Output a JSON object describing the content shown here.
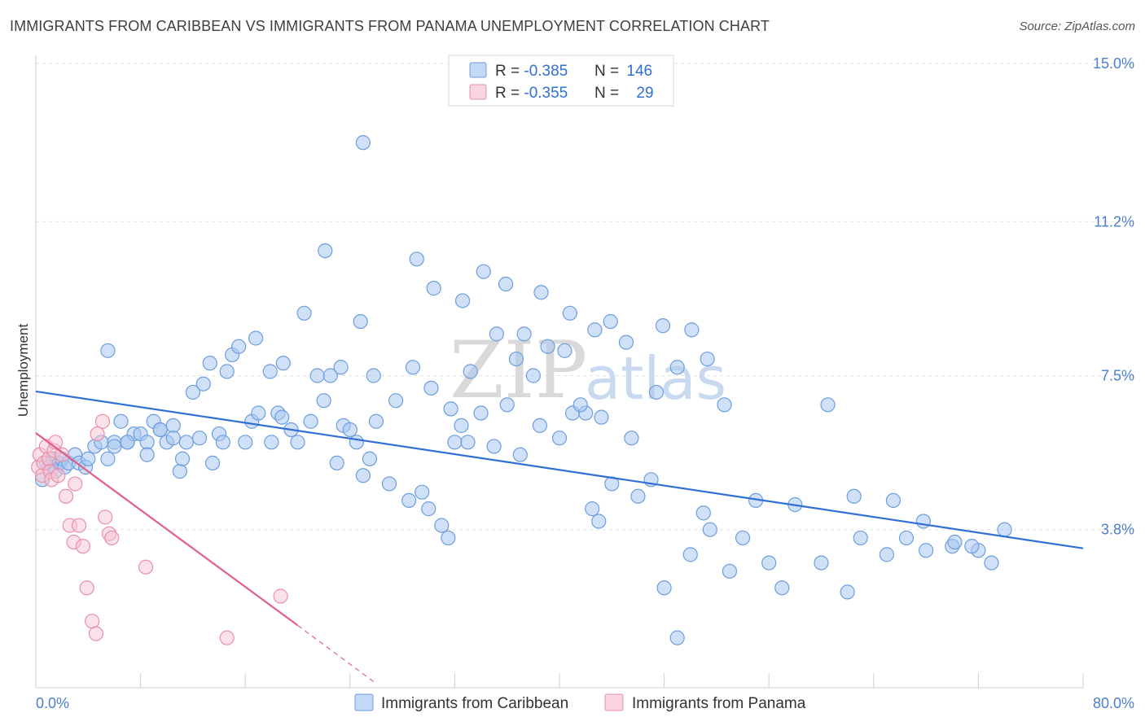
{
  "header": {
    "title": "IMMIGRANTS FROM CARIBBEAN VS IMMIGRANTS FROM PANAMA UNEMPLOYMENT CORRELATION CHART",
    "source": "Source: ZipAtlas.com"
  },
  "watermark": {
    "zip": "ZIP",
    "atlas": "atlas"
  },
  "legend": {
    "rows": [
      {
        "r_label": "R = ",
        "r_value": "-0.385",
        "n_label": "N = ",
        "n_value": "146",
        "color": "#8fb4ea"
      },
      {
        "r_label": "R = ",
        "r_value": "-0.355",
        "n_label": "N = ",
        "n_value": "29",
        "color": "#f2a7bd"
      }
    ]
  },
  "colors": {
    "caribbean_fill": "#aac8f0",
    "caribbean_stroke": "#6d9de0",
    "caribbean_line": "#2f6fd6",
    "panama_fill": "#f7c3d2",
    "panama_stroke": "#ea8fab",
    "panama_line": "#e0608a",
    "grid": "#e3e3e3",
    "tick_text": "#4a7fd0"
  },
  "chart_data": {
    "type": "scatter",
    "title": "IMMIGRANTS FROM CARIBBEAN VS IMMIGRANTS FROM PANAMA UNEMPLOYMENT CORRELATION CHART",
    "xlabel": "",
    "ylabel": "Unemployment",
    "xlim": [
      0,
      80
    ],
    "ylim": [
      0,
      15.0
    ],
    "x_tick_labels": [
      "0.0%",
      "80.0%"
    ],
    "y_ticks": [
      3.8,
      7.5,
      11.2,
      15.0
    ],
    "y_tick_labels": [
      "3.8%",
      "7.5%",
      "11.2%",
      "15.0%"
    ],
    "grid": true,
    "legend_position": "top-center",
    "series": [
      {
        "name": "Immigrants from Caribbean",
        "R": -0.385,
        "N": 146,
        "trend": {
          "x": [
            0,
            80
          ],
          "y": [
            7.12,
            3.35
          ]
        },
        "points": [
          [
            0.5,
            5.0
          ],
          [
            0.8,
            5.4
          ],
          [
            1.0,
            5.3
          ],
          [
            1.3,
            5.5
          ],
          [
            1.5,
            5.2
          ],
          [
            1.8,
            5.4
          ],
          [
            2.0,
            5.5
          ],
          [
            2.2,
            5.3
          ],
          [
            2.5,
            5.4
          ],
          [
            3.0,
            5.6
          ],
          [
            3.3,
            5.4
          ],
          [
            3.8,
            5.3
          ],
          [
            4.0,
            5.5
          ],
          [
            4.5,
            5.8
          ],
          [
            5.0,
            5.9
          ],
          [
            5.5,
            5.5
          ],
          [
            6.0,
            5.9
          ],
          [
            6.5,
            6.4
          ],
          [
            7.0,
            5.9
          ],
          [
            7.5,
            6.1
          ],
          [
            8.0,
            6.1
          ],
          [
            8.5,
            5.9
          ],
          [
            9.0,
            6.4
          ],
          [
            9.5,
            6.2
          ],
          [
            10.0,
            5.9
          ],
          [
            10.5,
            6.3
          ],
          [
            11.0,
            5.2
          ],
          [
            11.5,
            5.9
          ],
          [
            12.0,
            7.1
          ],
          [
            12.5,
            6.0
          ],
          [
            13.5,
            5.4
          ],
          [
            14.0,
            6.1
          ],
          [
            14.3,
            5.9
          ],
          [
            15.0,
            8.0
          ],
          [
            16.0,
            5.9
          ],
          [
            16.5,
            6.4
          ],
          [
            17.0,
            6.6
          ],
          [
            18.0,
            5.9
          ],
          [
            18.5,
            6.6
          ],
          [
            18.8,
            6.5
          ],
          [
            19.5,
            6.2
          ],
          [
            20.0,
            5.9
          ],
          [
            21.0,
            6.4
          ],
          [
            22.0,
            6.9
          ],
          [
            22.5,
            7.5
          ],
          [
            23.0,
            5.4
          ],
          [
            23.5,
            6.3
          ],
          [
            24.0,
            6.2
          ],
          [
            24.5,
            5.9
          ],
          [
            25.0,
            5.1
          ],
          [
            25.5,
            5.5
          ],
          [
            26.0,
            6.4
          ],
          [
            27.0,
            4.9
          ],
          [
            28.5,
            4.5
          ],
          [
            29.5,
            4.7
          ],
          [
            30.0,
            4.3
          ],
          [
            31.0,
            3.9
          ],
          [
            31.5,
            3.6
          ],
          [
            32.0,
            5.9
          ],
          [
            32.5,
            6.3
          ],
          [
            33.0,
            5.9
          ],
          [
            34.0,
            6.6
          ],
          [
            35.0,
            5.8
          ],
          [
            36.0,
            6.8
          ],
          [
            37.0,
            5.6
          ],
          [
            38.5,
            6.3
          ],
          [
            40.0,
            6.0
          ],
          [
            41.0,
            6.6
          ],
          [
            42.0,
            6.6
          ],
          [
            42.5,
            4.3
          ],
          [
            43.0,
            4.0
          ],
          [
            44.0,
            4.9
          ],
          [
            46.0,
            4.6
          ],
          [
            47.0,
            5.0
          ],
          [
            48.0,
            2.4
          ],
          [
            49.0,
            1.2
          ],
          [
            50.0,
            3.2
          ],
          [
            51.0,
            4.2
          ],
          [
            51.5,
            3.8
          ],
          [
            53.0,
            2.8
          ],
          [
            54.0,
            3.6
          ],
          [
            55.0,
            4.5
          ],
          [
            56.0,
            3.0
          ],
          [
            57.0,
            2.4
          ],
          [
            58.0,
            4.4
          ],
          [
            60.0,
            3.0
          ],
          [
            62.0,
            2.3
          ],
          [
            63.0,
            3.6
          ],
          [
            65.0,
            3.2
          ],
          [
            66.5,
            3.6
          ],
          [
            68.0,
            3.3
          ],
          [
            70.0,
            3.4
          ],
          [
            72.0,
            3.3
          ],
          [
            73.0,
            3.0
          ],
          [
            74.0,
            3.8
          ],
          [
            5.5,
            8.1
          ],
          [
            6.0,
            5.8
          ],
          [
            7.0,
            5.9
          ],
          [
            8.5,
            5.6
          ],
          [
            9.5,
            6.2
          ],
          [
            10.5,
            6.0
          ],
          [
            11.2,
            5.5
          ],
          [
            12.8,
            7.3
          ],
          [
            13.3,
            7.8
          ],
          [
            14.6,
            7.6
          ],
          [
            15.5,
            8.2
          ],
          [
            16.8,
            8.4
          ],
          [
            17.9,
            7.6
          ],
          [
            18.9,
            7.8
          ],
          [
            20.5,
            9.0
          ],
          [
            21.5,
            7.5
          ],
          [
            23.3,
            7.7
          ],
          [
            24.8,
            8.8
          ],
          [
            25.8,
            7.5
          ],
          [
            27.5,
            6.9
          ],
          [
            28.8,
            7.7
          ],
          [
            30.2,
            7.2
          ],
          [
            31.7,
            6.7
          ],
          [
            33.2,
            7.6
          ],
          [
            35.2,
            8.5
          ],
          [
            36.7,
            7.9
          ],
          [
            38.0,
            7.5
          ],
          [
            39.1,
            8.2
          ],
          [
            40.4,
            8.1
          ],
          [
            41.6,
            6.8
          ],
          [
            43.2,
            6.5
          ],
          [
            45.5,
            6.0
          ],
          [
            47.4,
            7.1
          ],
          [
            50.1,
            8.6
          ],
          [
            52.6,
            6.8
          ],
          [
            60.5,
            6.8
          ],
          [
            62.5,
            4.6
          ],
          [
            65.5,
            4.5
          ],
          [
            67.8,
            4.0
          ],
          [
            70.2,
            3.5
          ],
          [
            71.5,
            3.4
          ],
          [
            22.1,
            10.5
          ],
          [
            25.0,
            13.1
          ],
          [
            29.1,
            10.3
          ],
          [
            30.4,
            9.6
          ],
          [
            32.6,
            9.3
          ],
          [
            34.2,
            10.0
          ],
          [
            35.9,
            9.7
          ],
          [
            37.3,
            8.5
          ],
          [
            38.6,
            9.5
          ],
          [
            40.8,
            9.0
          ],
          [
            42.7,
            8.6
          ],
          [
            43.9,
            8.8
          ],
          [
            45.1,
            8.3
          ],
          [
            47.9,
            8.7
          ],
          [
            49.0,
            7.7
          ],
          [
            51.3,
            7.9
          ]
        ]
      },
      {
        "name": "Immigrants from Panama",
        "R": -0.355,
        "N": 29,
        "trend": {
          "x": [
            0,
            20
          ],
          "y": [
            6.12,
            1.5
          ]
        },
        "trend_extension": {
          "x": [
            20,
            26
          ],
          "y": [
            1.5,
            0.1
          ]
        },
        "points": [
          [
            0.2,
            5.3
          ],
          [
            0.3,
            5.6
          ],
          [
            0.5,
            5.1
          ],
          [
            0.6,
            5.4
          ],
          [
            0.8,
            5.8
          ],
          [
            1.0,
            5.5
          ],
          [
            1.1,
            5.2
          ],
          [
            1.2,
            5.0
          ],
          [
            1.4,
            5.7
          ],
          [
            1.5,
            5.9
          ],
          [
            1.7,
            5.1
          ],
          [
            2.0,
            5.6
          ],
          [
            2.3,
            4.6
          ],
          [
            2.6,
            3.9
          ],
          [
            2.9,
            3.5
          ],
          [
            3.0,
            4.9
          ],
          [
            3.3,
            3.9
          ],
          [
            3.6,
            3.4
          ],
          [
            3.9,
            2.4
          ],
          [
            4.3,
            1.6
          ],
          [
            4.6,
            1.3
          ],
          [
            5.1,
            6.4
          ],
          [
            5.3,
            4.1
          ],
          [
            5.6,
            3.7
          ],
          [
            4.7,
            6.1
          ],
          [
            5.8,
            3.6
          ],
          [
            8.4,
            2.9
          ],
          [
            14.6,
            1.2
          ],
          [
            18.7,
            2.2
          ]
        ]
      }
    ]
  },
  "bottom_legend": [
    {
      "label": "Immigrants from Caribbean"
    },
    {
      "label": "Immigrants from Panama"
    }
  ]
}
